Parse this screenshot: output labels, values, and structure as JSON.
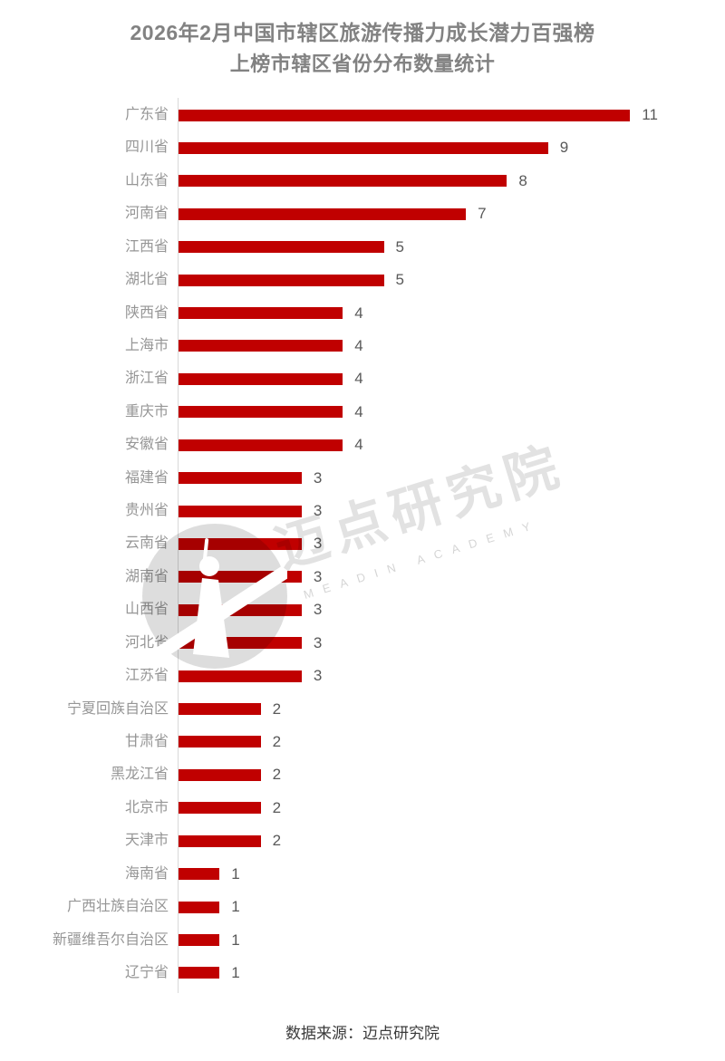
{
  "page": {
    "title_line1": "2026年2月中国市辖区旅游传播力成长潜力百强榜",
    "title_line2": "上榜市辖区省份分布数量统计",
    "source_note": "数据来源：迈点研究院"
  },
  "watermark": {
    "brand_text": "迈点研究院",
    "brand_subtext": "MEADIN ACADEMY",
    "logo_icon": "meadin-tower-icon"
  },
  "colors": {
    "bar": "#c00000",
    "title_text": "#828282",
    "category_text": "#969696",
    "value_text": "#595959",
    "axis_line": "#d9d9d9",
    "source_text": "#3a3a3a",
    "background": "#ffffff"
  },
  "chart_data": {
    "type": "bar",
    "orientation": "horizontal",
    "title": "2026年2月中国市辖区旅游传播力成长潜力百强榜",
    "subtitle": "上榜市辖区省份分布数量统计",
    "categories": [
      "广东省",
      "四川省",
      "山东省",
      "河南省",
      "江西省",
      "湖北省",
      "陕西省",
      "上海市",
      "浙江省",
      "重庆市",
      "安徽省",
      "福建省",
      "贵州省",
      "云南省",
      "湖南省",
      "山西省",
      "河北省",
      "江苏省",
      "宁夏回族自治区",
      "甘肃省",
      "黑龙江省",
      "北京市",
      "天津市",
      "海南省",
      "广西壮族自治区",
      "新疆维吾尔自治区",
      "辽宁省"
    ],
    "values": [
      11,
      9,
      8,
      7,
      5,
      5,
      4,
      4,
      4,
      4,
      4,
      3,
      3,
      3,
      3,
      3,
      3,
      3,
      2,
      2,
      2,
      2,
      2,
      1,
      1,
      1,
      1
    ],
    "xlim": [
      0,
      11
    ],
    "value_labels_shown": true,
    "gridlines": false,
    "legend": "none",
    "total": 100
  }
}
